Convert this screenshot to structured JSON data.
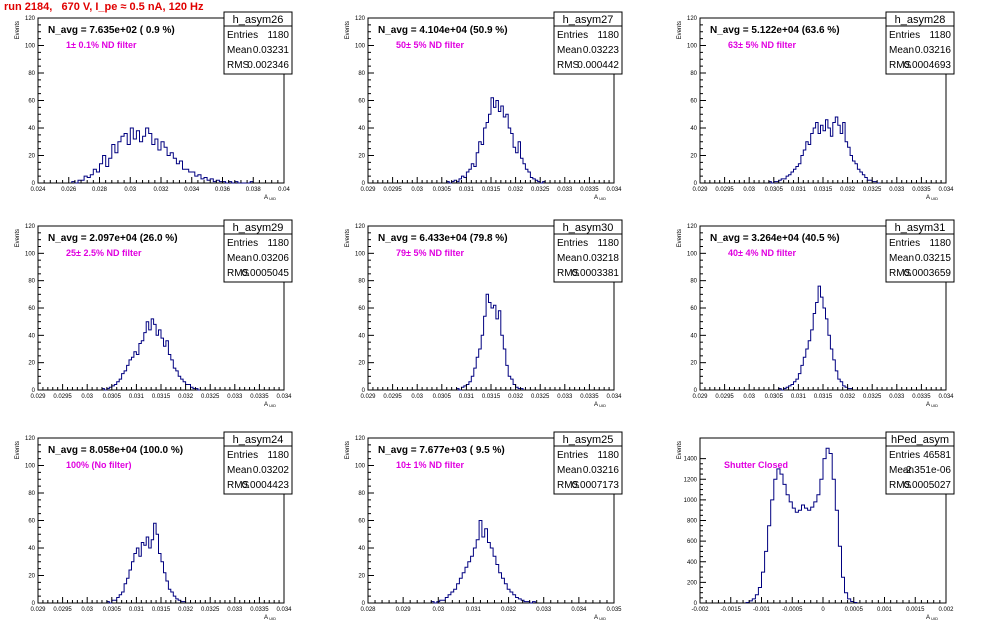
{
  "page": {
    "title": "run 2184,   670 V, I_pe ≈ 0.5 nA, 120 Hz"
  },
  "chart_data": [
    {
      "type": "histogram",
      "name": "h_asym26",
      "navg": "N_avg = 7.635e+02 ( 0.9 %)",
      "filter": "1± 0.1% ND filter",
      "entries": "1180",
      "mean": "0.03231",
      "rms": "0.002346",
      "ylabel": "Events",
      "xlabel": "A_UID",
      "xlim": [
        0.024,
        0.04
      ],
      "ylim": [
        0,
        120
      ],
      "xticks": [
        0.024,
        0.026,
        0.028,
        0.03,
        0.032,
        0.034,
        0.036,
        0.038,
        0.04
      ],
      "xtick_labels": [
        "0.024",
        "0.026",
        "0.028",
        "0.03",
        "0.032",
        "0.034",
        "0.036",
        "0.038",
        "0.04"
      ],
      "yticks": [
        0,
        20,
        40,
        60,
        80,
        100,
        120
      ],
      "ytick_labels": [
        "0",
        "20",
        "40",
        "60",
        "80",
        "100",
        "120"
      ],
      "bins": {
        "start": 0.0262,
        "width": 0.0002,
        "counts": [
          1,
          0,
          2,
          2,
          5,
          4,
          6,
          10,
          8,
          14,
          20,
          12,
          18,
          28,
          22,
          30,
          34,
          36,
          28,
          40,
          32,
          38,
          30,
          34,
          40,
          36,
          28,
          32,
          24,
          30,
          26,
          20,
          22,
          18,
          14,
          16,
          10,
          10,
          8,
          8,
          5,
          6,
          3,
          4,
          2,
          3,
          1,
          2,
          1,
          1,
          0,
          1,
          0,
          1,
          0,
          0,
          0,
          0,
          1
        ]
      }
    },
    {
      "type": "histogram",
      "name": "h_asym27",
      "navg": "N_avg = 4.104e+04 (50.9 %)",
      "filter": "50± 5% ND filter",
      "entries": "1180",
      "mean": "0.03223",
      "rms": "0.000442",
      "ylabel": "Events",
      "xlabel": "A_UID",
      "xlim": [
        0.029,
        0.034
      ],
      "ylim": [
        0,
        120
      ],
      "xticks": [
        0.029,
        0.0295,
        0.03,
        0.0305,
        0.031,
        0.0315,
        0.032,
        0.0325,
        0.033,
        0.0335,
        0.034
      ],
      "xtick_labels": [
        "0.029",
        "0.0295",
        "0.03",
        "0.0305",
        "0.031",
        "0.0315",
        "0.032",
        "0.0325",
        "0.033",
        "0.0335",
        "0.034"
      ],
      "yticks": [
        0,
        20,
        40,
        60,
        80,
        100,
        120
      ],
      "ytick_labels": [
        "0",
        "20",
        "40",
        "60",
        "80",
        "100",
        "120"
      ],
      "bins": {
        "start": 0.0306,
        "width": 5e-05,
        "counts": [
          1,
          0,
          1,
          2,
          1,
          3,
          5,
          4,
          8,
          10,
          14,
          12,
          22,
          30,
          28,
          40,
          44,
          50,
          62,
          55,
          60,
          52,
          56,
          48,
          50,
          40,
          36,
          26,
          22,
          30,
          18,
          14,
          10,
          8,
          4,
          3,
          2,
          1,
          0,
          1
        ]
      }
    },
    {
      "type": "histogram",
      "name": "h_asym28",
      "navg": "N_avg = 5.122e+04 (63.6 %)",
      "filter": "63± 5% ND filter",
      "entries": "1180",
      "mean": "0.03216",
      "rms": "0.0004693",
      "ylabel": "Events",
      "xlabel": "A_UID",
      "xlim": [
        0.029,
        0.034
      ],
      "ylim": [
        0,
        120
      ],
      "xticks": [
        0.029,
        0.0295,
        0.03,
        0.0305,
        0.031,
        0.0315,
        0.032,
        0.0325,
        0.033,
        0.0335,
        0.034
      ],
      "xtick_labels": [
        "0.029",
        "0.0295",
        "0.03",
        "0.0305",
        "0.031",
        "0.0315",
        "0.032",
        "0.0325",
        "0.033",
        "0.0335",
        "0.034"
      ],
      "yticks": [
        0,
        20,
        40,
        60,
        80,
        100,
        120
      ],
      "ytick_labels": [
        "0",
        "20",
        "40",
        "60",
        "80",
        "100",
        "120"
      ],
      "bins": {
        "start": 0.0304,
        "width": 5e-05,
        "counts": [
          1,
          0,
          1,
          1,
          2,
          3,
          3,
          5,
          6,
          8,
          10,
          12,
          14,
          20,
          24,
          30,
          28,
          36,
          40,
          44,
          36,
          42,
          38,
          46,
          40,
          34,
          44,
          48,
          42,
          36,
          44,
          30,
          26,
          20,
          16,
          14,
          10,
          8,
          6,
          4,
          2,
          2,
          1,
          1,
          0
        ]
      }
    },
    {
      "type": "histogram",
      "name": "h_asym29",
      "navg": "N_avg = 2.097e+04 (26.0 %)",
      "filter": "25± 2.5% ND filter",
      "entries": "1180",
      "mean": "0.03206",
      "rms": "0.0005045",
      "ylabel": "Events",
      "xlabel": "A_UID",
      "xlim": [
        0.029,
        0.034
      ],
      "ylim": [
        0,
        120
      ],
      "xticks": [
        0.029,
        0.0295,
        0.03,
        0.0305,
        0.031,
        0.0315,
        0.032,
        0.0325,
        0.033,
        0.0335,
        0.034
      ],
      "xtick_labels": [
        "0.029",
        "0.0295",
        "0.03",
        "0.0305",
        "0.031",
        "0.0315",
        "0.032",
        "0.0325",
        "0.033",
        "0.0335",
        "0.034"
      ],
      "yticks": [
        0,
        20,
        40,
        60,
        80,
        100,
        120
      ],
      "ytick_labels": [
        "0",
        "20",
        "40",
        "60",
        "80",
        "100",
        "120"
      ],
      "bins": {
        "start": 0.0303,
        "width": 5e-05,
        "counts": [
          1,
          0,
          1,
          2,
          3,
          4,
          6,
          8,
          12,
          14,
          18,
          22,
          24,
          28,
          26,
          34,
          36,
          42,
          50,
          44,
          52,
          48,
          40,
          44,
          38,
          32,
          36,
          26,
          22,
          16,
          14,
          10,
          8,
          6,
          4,
          4,
          2,
          1,
          1,
          0
        ]
      }
    },
    {
      "type": "histogram",
      "name": "h_asym30",
      "navg": "N_avg = 6.433e+04 (79.8 %)",
      "filter": "79± 5% ND filter",
      "entries": "1180",
      "mean": "0.03218",
      "rms": "0.0003381",
      "ylabel": "Events",
      "xlabel": "A_UID",
      "xlim": [
        0.029,
        0.034
      ],
      "ylim": [
        0,
        120
      ],
      "xticks": [
        0.029,
        0.0295,
        0.03,
        0.0305,
        0.031,
        0.0315,
        0.032,
        0.0325,
        0.033,
        0.0335,
        0.034
      ],
      "xtick_labels": [
        "0.029",
        "0.0295",
        "0.03",
        "0.0305",
        "0.031",
        "0.0315",
        "0.032",
        "0.0325",
        "0.033",
        "0.0335",
        "0.034"
      ],
      "yticks": [
        0,
        20,
        40,
        60,
        80,
        100,
        120
      ],
      "ytick_labels": [
        "0",
        "20",
        "40",
        "60",
        "80",
        "100",
        "120"
      ],
      "bins": {
        "start": 0.0308,
        "width": 5e-05,
        "counts": [
          1,
          0,
          2,
          3,
          4,
          6,
          10,
          16,
          24,
          30,
          40,
          54,
          70,
          64,
          60,
          62,
          52,
          58,
          40,
          30,
          18,
          10,
          8,
          4,
          2,
          1,
          1
        ]
      }
    },
    {
      "type": "histogram",
      "name": "h_asym31",
      "navg": "N_avg = 3.264e+04 (40.5 %)",
      "filter": "40± 4% ND filter",
      "entries": "1180",
      "mean": "0.03215",
      "rms": "0.0003659",
      "ylabel": "Events",
      "xlabel": "A_UID",
      "xlim": [
        0.029,
        0.034
      ],
      "ylim": [
        0,
        120
      ],
      "xticks": [
        0.029,
        0.0295,
        0.03,
        0.0305,
        0.031,
        0.0315,
        0.032,
        0.0325,
        0.033,
        0.0335,
        0.034
      ],
      "xtick_labels": [
        "0.029",
        "0.0295",
        "0.03",
        "0.0305",
        "0.031",
        "0.0315",
        "0.032",
        "0.0325",
        "0.033",
        "0.0335",
        "0.034"
      ],
      "yticks": [
        0,
        20,
        40,
        60,
        80,
        100,
        120
      ],
      "ytick_labels": [
        "0",
        "20",
        "40",
        "60",
        "80",
        "100",
        "120"
      ],
      "bins": {
        "start": 0.0306,
        "width": 5e-05,
        "counts": [
          1,
          0,
          1,
          2,
          3,
          4,
          6,
          8,
          12,
          18,
          24,
          30,
          36,
          44,
          56,
          64,
          76,
          68,
          60,
          52,
          40,
          30,
          22,
          14,
          8,
          6,
          3,
          2,
          1,
          1
        ]
      }
    },
    {
      "type": "histogram",
      "name": "h_asym24",
      "navg": "N_avg = 8.058e+04 (100.0 %)",
      "filter": "100% (No filter)",
      "entries": "1180",
      "mean": "0.03202",
      "rms": "0.0004423",
      "ylabel": "Events",
      "xlabel": "A_UID",
      "xlim": [
        0.029,
        0.034
      ],
      "ylim": [
        0,
        120
      ],
      "xticks": [
        0.029,
        0.0295,
        0.03,
        0.0305,
        0.031,
        0.0315,
        0.032,
        0.0325,
        0.033,
        0.0335,
        0.034
      ],
      "xtick_labels": [
        "0.029",
        "0.0295",
        "0.03",
        "0.0305",
        "0.031",
        "0.0315",
        "0.032",
        "0.0325",
        "0.033",
        "0.0335",
        "0.034"
      ],
      "yticks": [
        0,
        20,
        40,
        60,
        80,
        100,
        120
      ],
      "ytick_labels": [
        "0",
        "20",
        "40",
        "60",
        "80",
        "100",
        "120"
      ],
      "bins": {
        "start": 0.0304,
        "width": 5e-05,
        "counts": [
          1,
          0,
          2,
          2,
          4,
          6,
          8,
          14,
          18,
          24,
          30,
          36,
          40,
          34,
          44,
          42,
          48,
          40,
          46,
          58,
          50,
          36,
          30,
          22,
          16,
          10,
          8,
          5,
          3,
          2,
          1,
          1
        ]
      }
    },
    {
      "type": "histogram",
      "name": "h_asym25",
      "navg": "N_avg = 7.677e+03 ( 9.5 %)",
      "filter": "10± 1% ND filter",
      "entries": "1180",
      "mean": "0.03216",
      "rms": "0.0007173",
      "ylabel": "Events",
      "xlabel": "A_UID",
      "xlim": [
        0.028,
        0.035
      ],
      "ylim": [
        0,
        120
      ],
      "xticks": [
        0.028,
        0.029,
        0.03,
        0.031,
        0.032,
        0.033,
        0.034,
        0.035
      ],
      "xtick_labels": [
        "0.028",
        "0.029",
        "0.03",
        "0.031",
        "0.032",
        "0.033",
        "0.034",
        "0.035"
      ],
      "yticks": [
        0,
        20,
        40,
        60,
        80,
        100,
        120
      ],
      "ytick_labels": [
        "0",
        "20",
        "40",
        "60",
        "80",
        "100",
        "120"
      ],
      "bins": {
        "start": 0.0298,
        "width": 8e-05,
        "counts": [
          1,
          0,
          1,
          2,
          2,
          4,
          6,
          8,
          10,
          14,
          18,
          22,
          26,
          30,
          34,
          40,
          46,
          60,
          48,
          54,
          44,
          40,
          34,
          28,
          22,
          18,
          14,
          10,
          8,
          6,
          4,
          3,
          2,
          1,
          1,
          0,
          1
        ]
      }
    },
    {
      "type": "histogram",
      "name": "hPed_asym",
      "navg": "",
      "filter": "Shutter Closed",
      "entries": "46581",
      "mean": "-2.351e-06",
      "rms": "0.0005027",
      "ylabel": "Events",
      "xlabel": "A_UID",
      "xlim": [
        -0.002,
        0.002
      ],
      "ylim": [
        0,
        1600
      ],
      "xticks": [
        -0.002,
        -0.0015,
        -0.001,
        -0.0005,
        0,
        0.0005,
        0.001,
        0.0015,
        0.002
      ],
      "xtick_labels": [
        "-0.002",
        "-0.0015",
        "-0.001",
        "-0.0005",
        "0",
        "0.0005",
        "0.001",
        "0.0015",
        "0.002"
      ],
      "yticks": [
        0,
        200,
        400,
        600,
        800,
        1000,
        1200,
        1400
      ],
      "ytick_labels": [
        "0",
        "200",
        "400",
        "600",
        "800",
        "1000",
        "1200",
        "1400"
      ],
      "bins": {
        "start": -0.00125,
        "width": 5e-05,
        "counts": [
          5,
          20,
          40,
          80,
          150,
          300,
          500,
          750,
          1000,
          1200,
          1300,
          1250,
          1150,
          1050,
          980,
          920,
          880,
          900,
          950,
          920,
          900,
          930,
          980,
          1050,
          1200,
          1400,
          1500,
          1450,
          1200,
          900,
          550,
          250,
          100,
          40,
          15,
          5
        ]
      }
    }
  ]
}
